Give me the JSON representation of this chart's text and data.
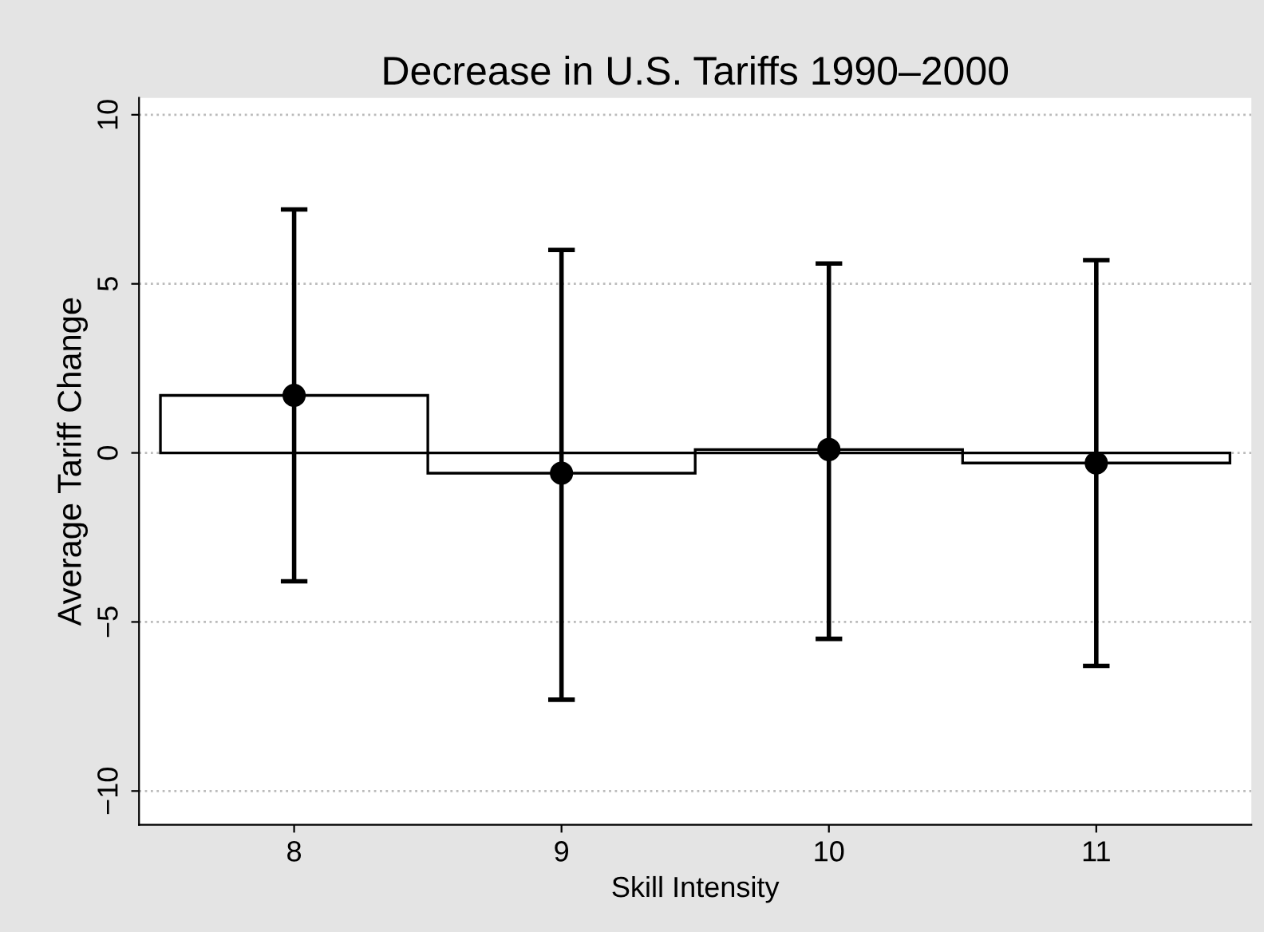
{
  "chart_data": {
    "type": "bar",
    "title": "Decrease in U.S. Tariffs 1990–2000",
    "xlabel": "Skill Intensity",
    "ylabel": "Average Tariff Change",
    "categories": [
      "8",
      "9",
      "10",
      "11"
    ],
    "series": [
      {
        "color": "#000000",
        "values": [
          1.7,
          -0.6,
          0.1,
          -0.3
        ]
      },
      {
        "type": "scatter",
        "color": "#000000",
        "x": [
          "8",
          "9",
          "10",
          "11"
        ],
        "values": [
          1.7,
          -0.6,
          0.1,
          -0.3
        ],
        "errors": [
          [
            -3.8,
            7.2
          ],
          [
            -7.3,
            6.0
          ],
          [
            -5.5,
            5.6
          ],
          [
            -6.3,
            5.7
          ]
        ]
      }
    ],
    "ylim": [
      -11,
      10.5
    ],
    "yticks": [
      -10,
      -5,
      0,
      5,
      10
    ],
    "grid": "y",
    "marker": "circle"
  }
}
